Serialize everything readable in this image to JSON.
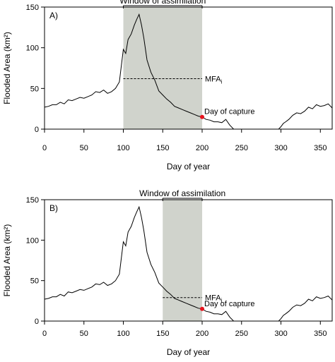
{
  "chart_data": [
    {
      "type": "line",
      "panel_label": "A)",
      "xlabel": "Day of year",
      "ylabel": "Flooded Area (km²)",
      "xlim": [
        0,
        365
      ],
      "ylim": [
        0,
        150
      ],
      "xticks": [
        0,
        50,
        100,
        150,
        200,
        250,
        300,
        350
      ],
      "yticks": [
        0,
        50,
        100,
        150
      ],
      "window": {
        "label": "Window of assimilation",
        "start": 100,
        "end": 200,
        "shade_color": "#d0d3cc"
      },
      "mfa": {
        "label": "MFA",
        "subscript": "i",
        "value": 62,
        "x_start": 100,
        "x_end": 200
      },
      "capture": {
        "label": "Day of capture",
        "day": 200,
        "value": 15,
        "color": "#e8141e"
      },
      "series": [
        {
          "x": [
            0,
            5,
            10,
            15,
            20,
            25,
            30,
            35,
            40,
            45,
            50,
            55,
            60,
            65,
            70,
            75,
            80,
            85,
            90,
            95,
            100,
            103,
            106,
            110,
            114,
            117,
            120,
            123,
            126,
            130,
            135,
            140,
            145,
            150,
            155,
            160,
            165,
            170,
            175,
            180,
            185,
            190,
            195,
            200,
            205,
            210,
            215,
            220,
            225,
            230,
            235,
            240,
            250,
            260,
            270,
            280,
            290,
            297,
            300,
            303,
            306,
            310,
            315,
            320,
            325,
            330,
            335,
            340,
            345,
            350,
            355,
            360,
            365
          ],
          "y": [
            27,
            28,
            30,
            30,
            33,
            31,
            36,
            35,
            37,
            39,
            38,
            40,
            42,
            46,
            45,
            48,
            44,
            46,
            50,
            58,
            98,
            93,
            110,
            117,
            128,
            135,
            141,
            128,
            112,
            85,
            70,
            60,
            47,
            42,
            37,
            33,
            28,
            26,
            24,
            22,
            20,
            18,
            16,
            15,
            12,
            11,
            9,
            9,
            8,
            12,
            5,
            0,
            0,
            0,
            0,
            0,
            0,
            0,
            3,
            7,
            9,
            12,
            17,
            20,
            19,
            22,
            27,
            25,
            30,
            28,
            29,
            31,
            26
          ]
        }
      ]
    },
    {
      "type": "line",
      "panel_label": "B)",
      "xlabel": "Day of year",
      "ylabel": "Flooded Area (km²)",
      "xlim": [
        0,
        365
      ],
      "ylim": [
        0,
        150
      ],
      "xticks": [
        0,
        50,
        100,
        150,
        200,
        250,
        300,
        350
      ],
      "yticks": [
        0,
        50,
        100,
        150
      ],
      "window": {
        "label": "Window of assimilation",
        "start": 150,
        "end": 200,
        "shade_color": "#d0d3cc"
      },
      "mfa": {
        "label": "MFA",
        "subscript": "i",
        "value": 29,
        "x_start": 150,
        "x_end": 200
      },
      "capture": {
        "label": "Day of capture",
        "day": 200,
        "value": 15,
        "color": "#e8141e"
      },
      "series": [
        {
          "x": [
            0,
            5,
            10,
            15,
            20,
            25,
            30,
            35,
            40,
            45,
            50,
            55,
            60,
            65,
            70,
            75,
            80,
            85,
            90,
            95,
            100,
            103,
            106,
            110,
            114,
            117,
            120,
            123,
            126,
            130,
            135,
            140,
            145,
            150,
            155,
            160,
            165,
            170,
            175,
            180,
            185,
            190,
            195,
            200,
            205,
            210,
            215,
            220,
            225,
            230,
            235,
            240,
            250,
            260,
            270,
            280,
            290,
            297,
            300,
            303,
            306,
            310,
            315,
            320,
            325,
            330,
            335,
            340,
            345,
            350,
            355,
            360,
            365
          ],
          "y": [
            27,
            28,
            30,
            30,
            33,
            31,
            36,
            35,
            37,
            39,
            38,
            40,
            42,
            46,
            45,
            48,
            44,
            46,
            50,
            58,
            98,
            93,
            110,
            117,
            128,
            135,
            141,
            128,
            112,
            85,
            70,
            60,
            47,
            42,
            37,
            33,
            28,
            26,
            24,
            22,
            20,
            18,
            16,
            15,
            12,
            11,
            9,
            9,
            8,
            12,
            5,
            0,
            0,
            0,
            0,
            0,
            0,
            0,
            3,
            7,
            9,
            12,
            17,
            20,
            19,
            22,
            27,
            25,
            30,
            28,
            29,
            31,
            26
          ]
        }
      ]
    }
  ]
}
